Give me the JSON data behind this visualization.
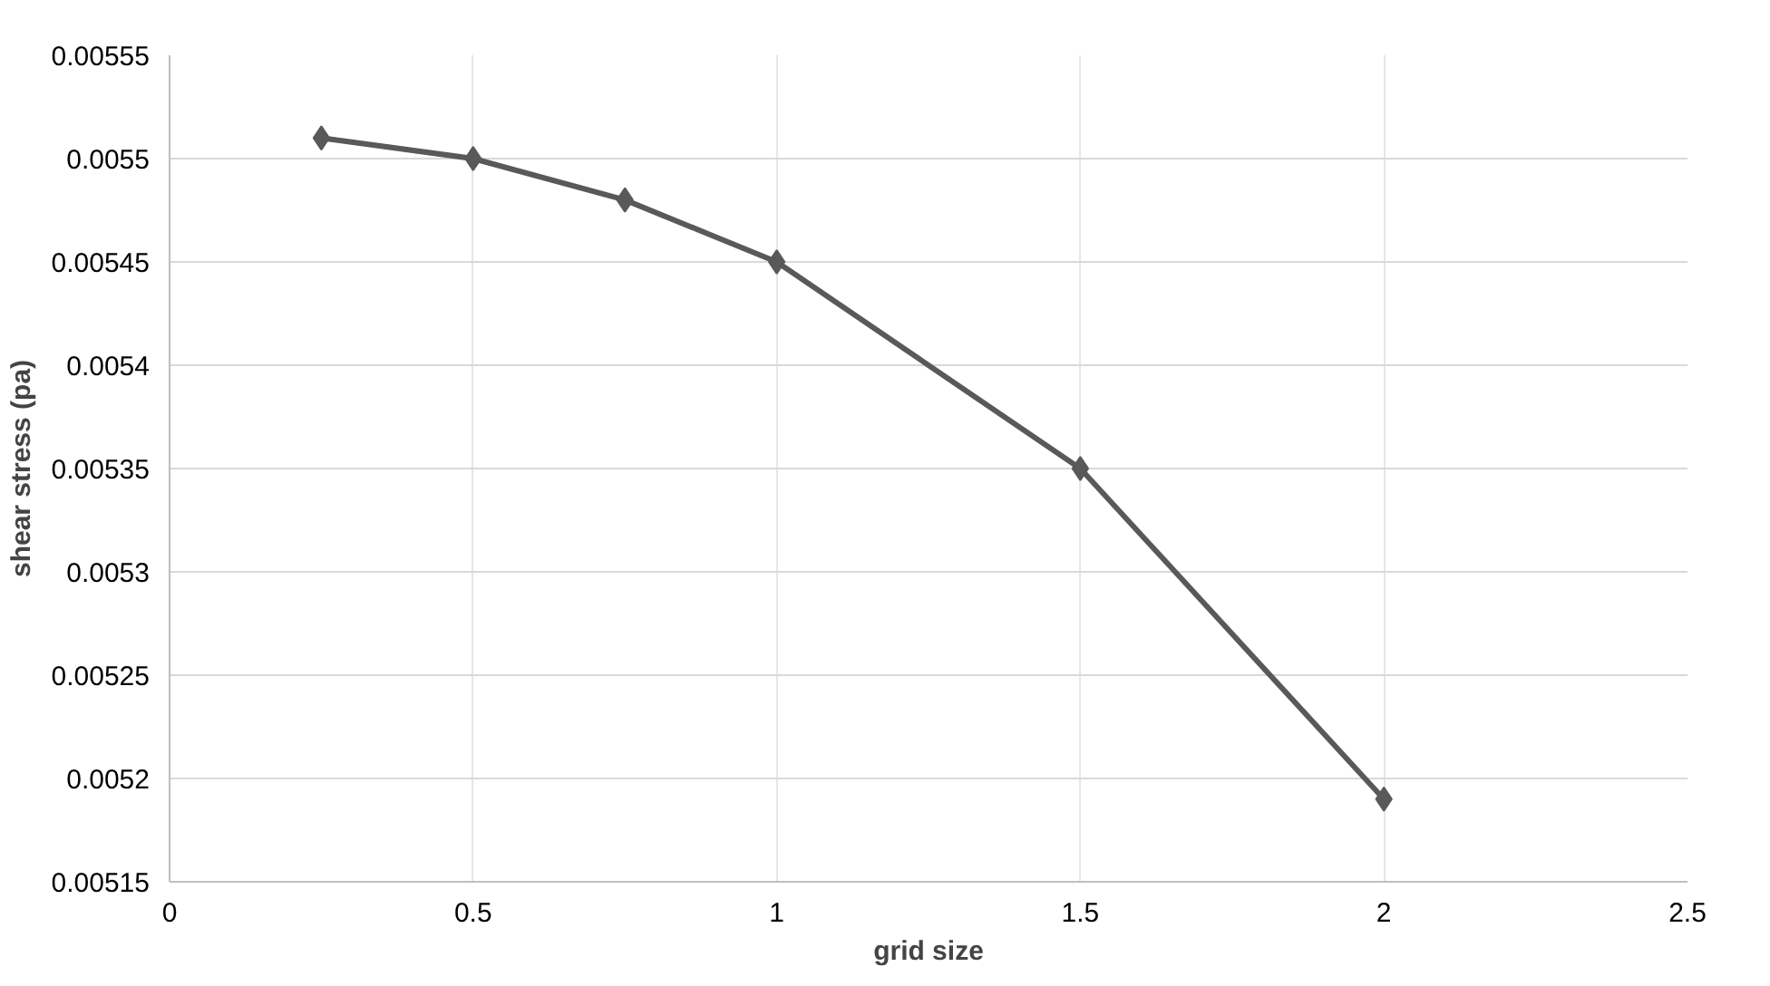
{
  "chart_data": {
    "type": "line",
    "xlabel": "grid size",
    "ylabel": "shear stress (pa)",
    "x": [
      0.25,
      0.5,
      0.75,
      1,
      1.5,
      2
    ],
    "series": [
      {
        "color": "#595959",
        "values": [
          0.00551,
          0.0055,
          0.00548,
          0.00545,
          0.00535,
          0.00519
        ]
      }
    ],
    "xlim": [
      0,
      2.5
    ],
    "xticks": [
      0,
      0.5,
      1,
      1.5,
      2,
      2.5
    ],
    "ylim": [
      0.00515,
      0.00555
    ],
    "yticks": [
      0.00515,
      0.0052,
      0.00525,
      0.0053,
      0.00535,
      0.0054,
      0.00545,
      0.0055,
      0.00555
    ],
    "grid": true,
    "marker": "diamond",
    "line_style": "solid"
  }
}
